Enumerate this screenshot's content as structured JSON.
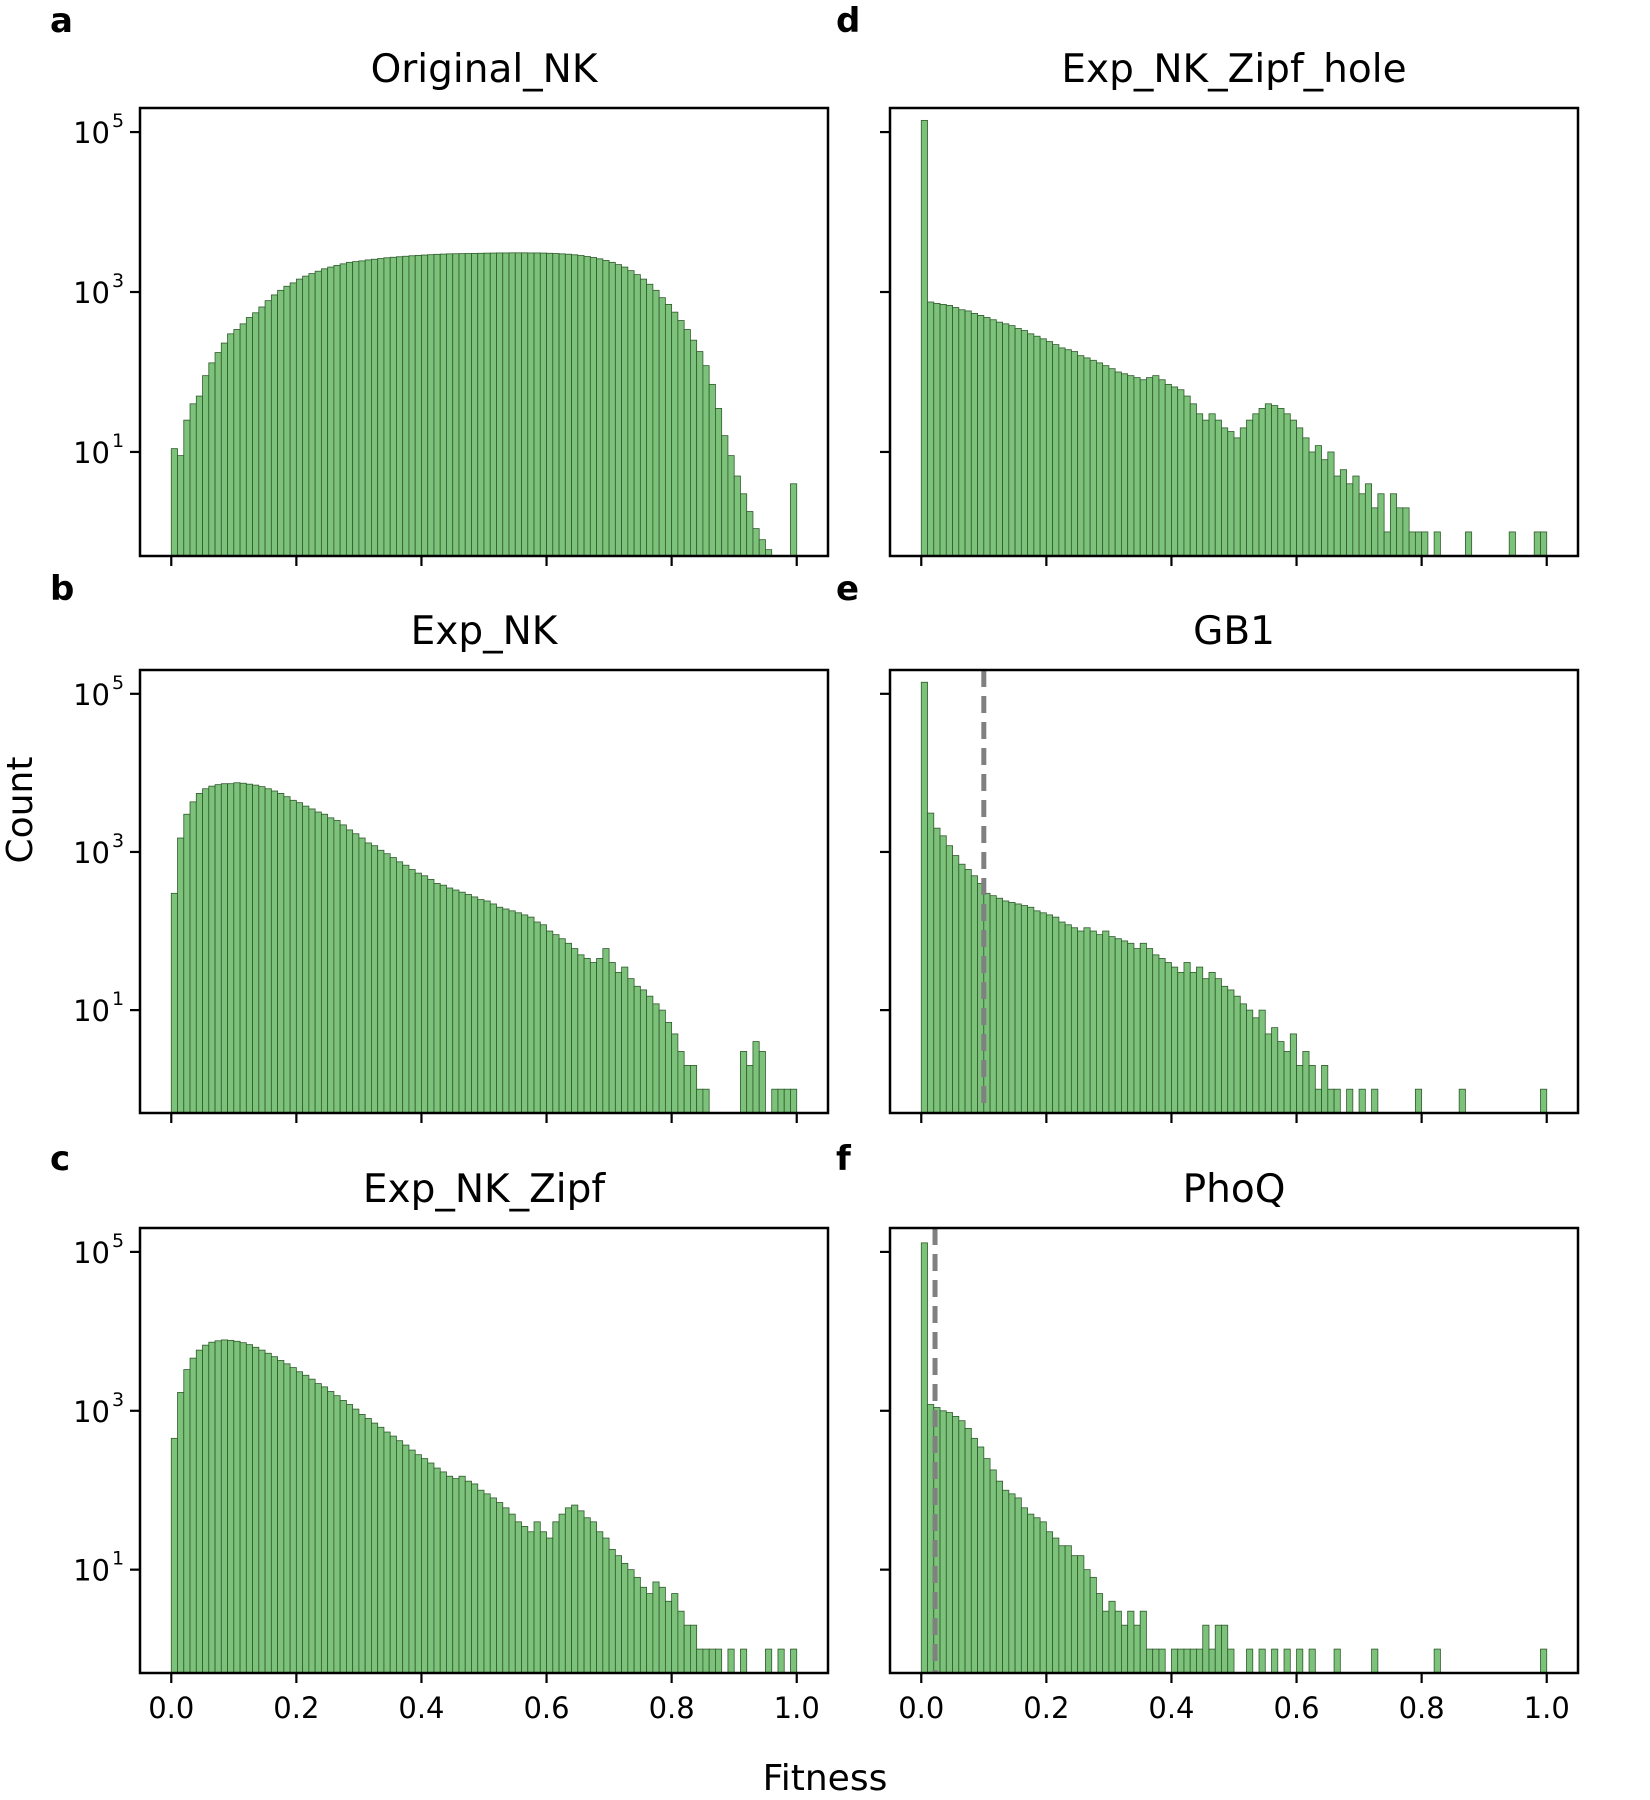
{
  "figure": {
    "xlabel": "Fitness",
    "ylabel": "Count"
  },
  "chart_data": [
    {
      "id": "a",
      "letter": "a",
      "title": "Original_NK",
      "type": "bar",
      "yscale": "log",
      "ylim": [
        0.5,
        200000
      ],
      "xlim": [
        -0.05,
        1.05
      ],
      "bin_width": 0.01,
      "yticks": [
        {
          "base": "10",
          "exp": "5",
          "value": 100000
        },
        {
          "base": "10",
          "exp": "3",
          "value": 1000
        },
        {
          "base": "10",
          "exp": "1",
          "value": 10
        }
      ],
      "xticks": [
        "0.0",
        "0.2",
        "0.4",
        "0.6",
        "0.8",
        "1.0"
      ],
      "show_xtick_labels": false,
      "show_ytick_labels": true,
      "values": [
        11,
        9,
        25,
        40,
        50,
        90,
        130,
        175,
        230,
        300,
        340,
        400,
        480,
        550,
        650,
        780,
        920,
        1050,
        1180,
        1300,
        1450,
        1580,
        1700,
        1820,
        1950,
        2050,
        2150,
        2250,
        2350,
        2400,
        2450,
        2520,
        2570,
        2620,
        2680,
        2720,
        2760,
        2800,
        2840,
        2870,
        2900,
        2930,
        2960,
        2980,
        3000,
        3010,
        3020,
        3030,
        3040,
        3050,
        3060,
        3070,
        3080,
        3080,
        3090,
        3090,
        3090,
        3080,
        3080,
        3070,
        3050,
        3030,
        3000,
        2970,
        2920,
        2860,
        2780,
        2700,
        2600,
        2480,
        2350,
        2200,
        2050,
        1850,
        1650,
        1450,
        1250,
        1050,
        850,
        700,
        560,
        440,
        340,
        250,
        180,
        120,
        70,
        35,
        16,
        9,
        5,
        3,
        1.8,
        1.1,
        0.8,
        0.6,
        0.5,
        0.5,
        0.5,
        4
      ]
    },
    {
      "id": "b",
      "letter": "b",
      "title": "Exp_NK",
      "type": "bar",
      "yscale": "log",
      "ylim": [
        0.5,
        200000
      ],
      "xlim": [
        -0.05,
        1.05
      ],
      "bin_width": 0.01,
      "yticks": [
        {
          "base": "10",
          "exp": "5",
          "value": 100000
        },
        {
          "base": "10",
          "exp": "3",
          "value": 1000
        },
        {
          "base": "10",
          "exp": "1",
          "value": 10
        }
      ],
      "xticks": [
        "0.0",
        "0.2",
        "0.4",
        "0.6",
        "0.8",
        "1.0"
      ],
      "show_xtick_labels": false,
      "show_ytick_labels": true,
      "values": [
        300,
        1500,
        3000,
        4300,
        5500,
        6300,
        6800,
        7100,
        7300,
        7300,
        7500,
        7400,
        7200,
        7000,
        6700,
        6300,
        5900,
        5500,
        5000,
        4500,
        4200,
        3800,
        3500,
        3200,
        3000,
        2700,
        2500,
        2200,
        1900,
        1700,
        1500,
        1300,
        1200,
        1050,
        950,
        850,
        750,
        680,
        600,
        540,
        500,
        450,
        400,
        380,
        350,
        330,
        310,
        290,
        270,
        250,
        240,
        220,
        200,
        190,
        180,
        170,
        160,
        150,
        130,
        120,
        100,
        90,
        80,
        70,
        60,
        50,
        45,
        40,
        45,
        60,
        40,
        30,
        35,
        25,
        20,
        18,
        15,
        12,
        10,
        7,
        5,
        3,
        2,
        2,
        1,
        1,
        0,
        0,
        0,
        0,
        0,
        3,
        2,
        4,
        3,
        0,
        1,
        1,
        1,
        1
      ]
    },
    {
      "id": "c",
      "letter": "c",
      "title": "Exp_NK_Zipf",
      "type": "bar",
      "yscale": "log",
      "ylim": [
        0.5,
        200000
      ],
      "xlim": [
        -0.05,
        1.05
      ],
      "bin_width": 0.01,
      "yticks": [
        {
          "base": "10",
          "exp": "5",
          "value": 100000
        },
        {
          "base": "10",
          "exp": "3",
          "value": 1000
        },
        {
          "base": "10",
          "exp": "1",
          "value": 10
        }
      ],
      "xticks": [
        "0.0",
        "0.2",
        "0.4",
        "0.6",
        "0.8",
        "1.0"
      ],
      "show_xtick_labels": true,
      "show_ytick_labels": true,
      "values": [
        450,
        1700,
        3300,
        4600,
        5800,
        6700,
        7300,
        7600,
        7800,
        7700,
        7500,
        7200,
        6800,
        6300,
        5800,
        5300,
        4800,
        4300,
        3900,
        3500,
        3100,
        2800,
        2500,
        2200,
        2000,
        1750,
        1550,
        1350,
        1200,
        1050,
        900,
        800,
        700,
        620,
        540,
        480,
        420,
        370,
        320,
        280,
        250,
        220,
        190,
        170,
        150,
        140,
        150,
        130,
        120,
        100,
        90,
        80,
        70,
        60,
        50,
        40,
        35,
        30,
        40,
        30,
        25,
        40,
        50,
        60,
        65,
        55,
        45,
        40,
        30,
        25,
        18,
        15,
        12,
        10,
        8,
        6,
        5,
        7,
        6,
        4,
        5,
        3,
        2,
        2,
        1,
        1,
        1,
        1,
        0,
        1,
        0,
        1,
        0,
        0,
        0,
        1,
        0,
        1,
        0,
        1
      ]
    },
    {
      "id": "d",
      "letter": "d",
      "title": "Exp_NK_Zipf_hole",
      "type": "bar",
      "yscale": "log",
      "ylim": [
        0.5,
        200000
      ],
      "xlim": [
        -0.05,
        1.05
      ],
      "bin_width": 0.01,
      "yticks": [
        {
          "base": "10",
          "exp": "5",
          "value": 100000
        },
        {
          "base": "10",
          "exp": "3",
          "value": 1000
        },
        {
          "base": "10",
          "exp": "1",
          "value": 10
        }
      ],
      "xticks": [
        "0.0",
        "0.2",
        "0.4",
        "0.6",
        "0.8",
        "1.0"
      ],
      "show_xtick_labels": false,
      "show_ytick_labels": false,
      "values": [
        140000,
        750,
        720,
        700,
        680,
        640,
        600,
        580,
        540,
        510,
        480,
        450,
        420,
        400,
        380,
        350,
        330,
        300,
        280,
        260,
        240,
        220,
        200,
        190,
        180,
        160,
        150,
        140,
        130,
        120,
        110,
        100,
        95,
        90,
        85,
        80,
        85,
        90,
        80,
        70,
        65,
        60,
        50,
        40,
        30,
        25,
        30,
        25,
        20,
        18,
        15,
        20,
        25,
        30,
        35,
        40,
        38,
        35,
        30,
        25,
        20,
        15,
        10,
        12,
        8,
        10,
        5,
        6,
        4,
        5,
        3,
        4,
        2,
        3,
        1,
        3,
        2,
        2,
        1,
        1,
        1,
        0,
        1,
        0,
        0,
        0,
        0,
        1,
        0,
        0,
        0,
        0,
        0,
        0,
        1,
        0,
        0,
        0,
        1,
        1
      ]
    },
    {
      "id": "e",
      "letter": "e",
      "title": "GB1",
      "type": "bar",
      "yscale": "log",
      "ylim": [
        0.5,
        200000
      ],
      "xlim": [
        -0.05,
        1.05
      ],
      "bin_width": 0.01,
      "yticks": [
        {
          "base": "10",
          "exp": "5",
          "value": 100000
        },
        {
          "base": "10",
          "exp": "3",
          "value": 1000
        },
        {
          "base": "10",
          "exp": "1",
          "value": 10
        }
      ],
      "xticks": [
        "0.0",
        "0.2",
        "0.4",
        "0.6",
        "0.8",
        "1.0"
      ],
      "show_xtick_labels": false,
      "show_ytick_labels": false,
      "ref_line_x": 0.1,
      "values": [
        140000,
        3100,
        2000,
        1600,
        1200,
        900,
        700,
        600,
        500,
        400,
        300,
        280,
        260,
        240,
        230,
        220,
        210,
        200,
        180,
        170,
        160,
        150,
        130,
        120,
        110,
        100,
        110,
        100,
        90,
        100,
        85,
        80,
        75,
        70,
        60,
        70,
        60,
        50,
        45,
        40,
        35,
        30,
        40,
        30,
        35,
        25,
        30,
        25,
        20,
        18,
        15,
        12,
        10,
        8,
        10,
        5,
        6,
        4,
        3,
        5,
        2,
        3,
        2,
        1,
        2,
        1,
        1,
        0,
        1,
        0,
        1,
        0,
        1,
        0,
        0,
        0,
        0,
        0,
        0,
        1,
        0,
        0,
        0,
        0,
        0,
        0,
        1,
        0,
        0,
        0,
        0,
        0,
        0,
        0,
        0,
        0,
        0,
        0,
        0,
        1
      ]
    },
    {
      "id": "f",
      "letter": "f",
      "title": "PhoQ",
      "type": "bar",
      "yscale": "log",
      "ylim": [
        0.5,
        200000
      ],
      "xlim": [
        -0.05,
        1.05
      ],
      "bin_width": 0.01,
      "yticks": [
        {
          "base": "10",
          "exp": "5",
          "value": 100000
        },
        {
          "base": "10",
          "exp": "3",
          "value": 1000
        },
        {
          "base": "10",
          "exp": "1",
          "value": 10
        }
      ],
      "xticks": [
        "0.0",
        "0.2",
        "0.4",
        "0.6",
        "0.8",
        "1.0"
      ],
      "show_xtick_labels": true,
      "show_ytick_labels": false,
      "ref_line_x": 0.022,
      "values": [
        130000,
        1200,
        1100,
        1000,
        950,
        850,
        750,
        600,
        450,
        350,
        250,
        180,
        130,
        100,
        90,
        80,
        60,
        50,
        45,
        40,
        30,
        25,
        20,
        20,
        15,
        15,
        10,
        8,
        5,
        3,
        4,
        3,
        2,
        3,
        2,
        3,
        1,
        1,
        1,
        0,
        1,
        1,
        1,
        1,
        1,
        2,
        1,
        2,
        2,
        1,
        0,
        0,
        1,
        0,
        1,
        0,
        1,
        0,
        1,
        0,
        1,
        0,
        1,
        0,
        0,
        0,
        1,
        0,
        0,
        0,
        0,
        0,
        1,
        0,
        0,
        0,
        0,
        0,
        0,
        0,
        0,
        0,
        1,
        0,
        0,
        0,
        0,
        0,
        0,
        0,
        0,
        0,
        0,
        0,
        0,
        0,
        0,
        0,
        0,
        1
      ]
    }
  ]
}
